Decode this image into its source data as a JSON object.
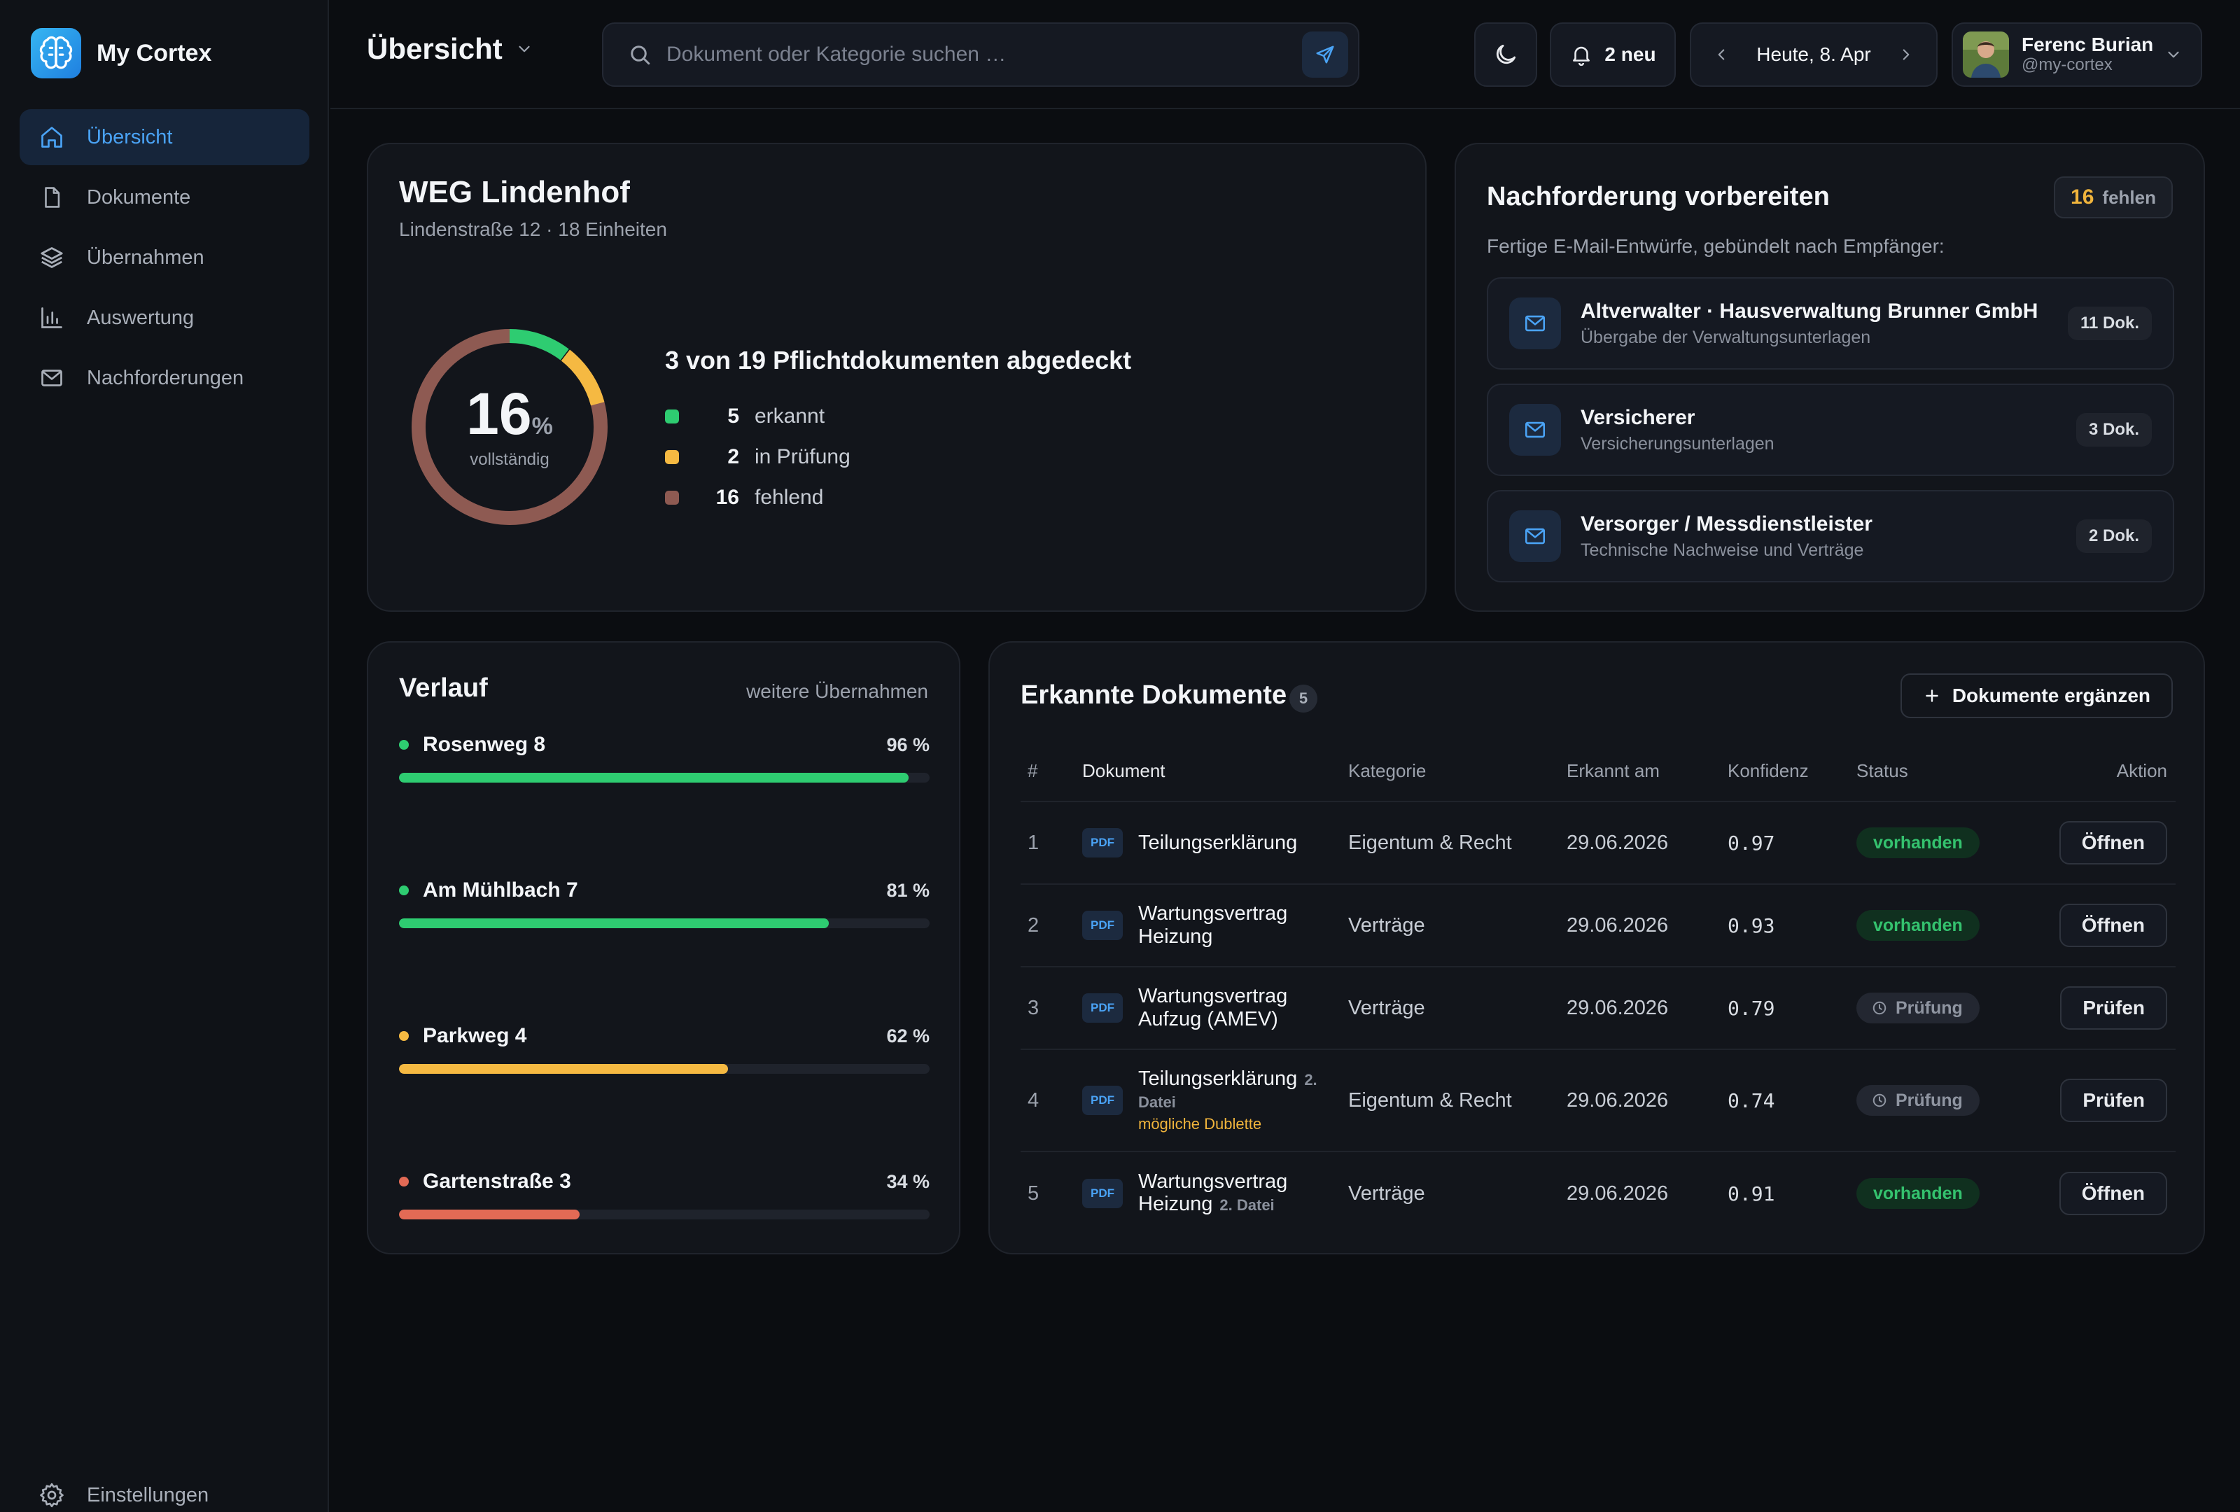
{
  "app": {
    "name": "My Cortex"
  },
  "sidebar": {
    "items": [
      {
        "label": "Übersicht"
      },
      {
        "label": "Dokumente"
      },
      {
        "label": "Übernahmen"
      },
      {
        "label": "Auswertung"
      },
      {
        "label": "Nachforderungen"
      }
    ],
    "settings_label": "Einstellungen"
  },
  "header": {
    "title": "Übersicht",
    "search_placeholder": "Dokument oder Kategorie suchen …",
    "notifications_label": "2 neu",
    "date_label": "Heute, 8. Apr",
    "user": {
      "name": "Ferenc Burian",
      "handle": "@my-cortex"
    }
  },
  "property": {
    "name": "WEG Lindenhof",
    "subtitle": "Lindenstraße 12 · 18 Einheiten",
    "completeness_value": "16",
    "completeness_unit": "%",
    "completeness_label": "vollständig",
    "coverage_title": "3 von 19 Pflichtdokumenten abgedeckt",
    "legend": [
      {
        "count": "5",
        "label": "erkannt",
        "color": "#2ecc71"
      },
      {
        "count": "2",
        "label": "in Prüfung",
        "color": "#f5b942"
      },
      {
        "count": "16",
        "label": "fehlend",
        "color": "#8e5a52"
      }
    ]
  },
  "followup": {
    "title": "Nachforderung vorbereiten",
    "missing_count": "16",
    "missing_label": "fehlen",
    "subtitle": "Fertige E-Mail-Entwürfe, gebündelt nach Empfänger:",
    "recipients": [
      {
        "name": "Altverwalter · Hausverwaltung Brunner GmbH",
        "desc": "Übergabe der Verwaltungsunterlagen",
        "count": "11 Dok."
      },
      {
        "name": "Versicherer",
        "desc": "Versicherungsunterlagen",
        "count": "3 Dok."
      },
      {
        "name": "Versorger / Messdienstleister",
        "desc": "Technische Nachweise und Verträge",
        "count": "2 Dok."
      }
    ]
  },
  "history": {
    "title": "Verlauf",
    "more_label": "weitere Übernahmen",
    "items": [
      {
        "name": "Rosenweg 8",
        "percent_label": "96 %",
        "value": 0.96,
        "color": "#2ecc71"
      },
      {
        "name": "Am Mühlbach 7",
        "percent_label": "81 %",
        "value": 0.81,
        "color": "#2ecc71"
      },
      {
        "name": "Parkweg 4",
        "percent_label": "62 %",
        "value": 0.62,
        "color": "#f5b942"
      },
      {
        "name": "Gartenstraße 3",
        "percent_label": "34 %",
        "value": 0.34,
        "color": "#e26a55"
      }
    ]
  },
  "documents": {
    "title": "Erkannte Dokumente",
    "count": "5",
    "add_label": "Dokumente ergänzen",
    "columns": [
      "#",
      "Dokument",
      "Kategorie",
      "Erkannt am",
      "Konfidenz",
      "Status",
      "Aktion"
    ],
    "file_type": "PDF",
    "rows": [
      {
        "num": "1",
        "name": "Teilungserklärung",
        "extra": "",
        "warning": "",
        "category": "Eigentum & Recht",
        "date": "29.06.2026",
        "confidence": "0.97",
        "status": "vorhanden",
        "status_type": "ok",
        "action": "Öffnen"
      },
      {
        "num": "2",
        "name": "Wartungsvertrag Heizung",
        "extra": "",
        "warning": "",
        "category": "Verträge",
        "date": "29.06.2026",
        "confidence": "0.93",
        "status": "vorhanden",
        "status_type": "ok",
        "action": "Öffnen"
      },
      {
        "num": "3",
        "name": "Wartungsvertrag Aufzug (AMEV)",
        "extra": "",
        "warning": "",
        "category": "Verträge",
        "date": "29.06.2026",
        "confidence": "0.79",
        "status": "Prüfung",
        "status_type": "review",
        "action": "Prüfen"
      },
      {
        "num": "4",
        "name": "Teilungserklärung",
        "extra": "2. Datei",
        "warning": "mögliche Dublette",
        "category": "Eigentum & Recht",
        "date": "29.06.2026",
        "confidence": "0.74",
        "status": "Prüfung",
        "status_type": "review",
        "action": "Prüfen"
      },
      {
        "num": "5",
        "name": "Wartungsvertrag Heizung",
        "extra": "2. Datei",
        "warning": "",
        "category": "Verträge",
        "date": "29.06.2026",
        "confidence": "0.91",
        "status": "vorhanden",
        "status_type": "ok",
        "action": "Öffnen"
      }
    ]
  }
}
